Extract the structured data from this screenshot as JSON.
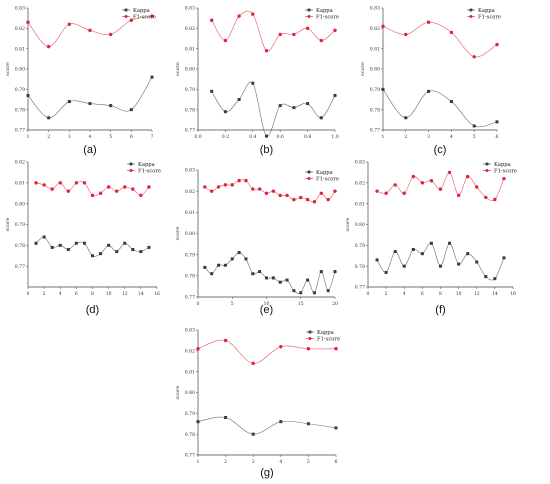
{
  "figure": {
    "colors": {
      "kappa": "#3a3a3a",
      "f1": "#e0223a",
      "axis": "#444444"
    },
    "legend_placement": "top-right",
    "grid": false
  },
  "chart_data": [
    {
      "type": "line",
      "panel": "a",
      "caption": "(a)",
      "ylabel": "score",
      "x": [
        1,
        2,
        3,
        4,
        5,
        6,
        7
      ],
      "xticks": [
        1,
        2,
        3,
        4,
        5,
        6,
        7
      ],
      "ylim": [
        0.77,
        0.83
      ],
      "yticks": [
        0.77,
        0.78,
        0.79,
        0.8,
        0.81,
        0.82,
        0.83
      ],
      "series": [
        {
          "name": "Kappa",
          "values": [
            0.787,
            0.776,
            0.784,
            0.783,
            0.782,
            0.78,
            0.796
          ]
        },
        {
          "name": "F1-score",
          "values": [
            0.823,
            0.811,
            0.822,
            0.819,
            0.817,
            0.824,
            0.826
          ]
        }
      ]
    },
    {
      "type": "line",
      "panel": "b",
      "caption": "(b)",
      "ylabel": "score",
      "x": [
        0.1,
        0.2,
        0.3,
        0.4,
        0.5,
        0.6,
        0.7,
        0.8,
        0.9,
        1.0
      ],
      "xticks": [
        0.0,
        0.2,
        0.4,
        0.6,
        0.8,
        1.0
      ],
      "ylim": [
        0.77,
        0.83
      ],
      "yticks": [
        0.77,
        0.78,
        0.79,
        0.8,
        0.81,
        0.82,
        0.83
      ],
      "series": [
        {
          "name": "Kappa",
          "values": [
            0.789,
            0.779,
            0.785,
            0.793,
            0.767,
            0.782,
            0.781,
            0.783,
            0.776,
            0.787
          ]
        },
        {
          "name": "F1-score",
          "values": [
            0.824,
            0.814,
            0.826,
            0.827,
            0.809,
            0.817,
            0.817,
            0.82,
            0.814,
            0.819
          ]
        }
      ]
    },
    {
      "type": "line",
      "panel": "c",
      "caption": "(c)",
      "ylabel": "score",
      "x": [
        1,
        2,
        3,
        4,
        5,
        6
      ],
      "xticks": [
        1,
        2,
        3,
        4,
        5,
        6
      ],
      "ylim": [
        0.77,
        0.83
      ],
      "yticks": [
        0.77,
        0.78,
        0.79,
        0.8,
        0.81,
        0.82,
        0.83
      ],
      "series": [
        {
          "name": "Kappa",
          "values": [
            0.79,
            0.776,
            0.789,
            0.784,
            0.772,
            0.774
          ]
        },
        {
          "name": "F1-score",
          "values": [
            0.821,
            0.817,
            0.823,
            0.818,
            0.806,
            0.812
          ]
        }
      ]
    },
    {
      "type": "line",
      "panel": "d",
      "caption": "(d)",
      "ylabel": "score",
      "x": [
        1,
        2,
        3,
        4,
        5,
        6,
        7,
        8,
        9,
        10,
        11,
        12,
        13,
        14,
        15
      ],
      "xticks": [
        0,
        2,
        4,
        6,
        8,
        10,
        12,
        14,
        16
      ],
      "ylim": [
        0.76,
        0.82
      ],
      "yticks": [
        0.77,
        0.78,
        0.79,
        0.8,
        0.81,
        0.82
      ],
      "series": [
        {
          "name": "Kappa",
          "values": [
            0.781,
            0.784,
            0.779,
            0.78,
            0.778,
            0.781,
            0.781,
            0.775,
            0.776,
            0.78,
            0.777,
            0.781,
            0.778,
            0.777,
            0.779
          ]
        },
        {
          "name": "F1-score",
          "values": [
            0.81,
            0.809,
            0.807,
            0.81,
            0.806,
            0.81,
            0.81,
            0.804,
            0.805,
            0.808,
            0.806,
            0.808,
            0.807,
            0.804,
            0.808
          ]
        }
      ]
    },
    {
      "type": "line",
      "panel": "e",
      "caption": "(e)",
      "ylabel": "score",
      "x": [
        1,
        2,
        3,
        4,
        5,
        6,
        7,
        8,
        9,
        10,
        11,
        12,
        13,
        14,
        15,
        16,
        17,
        18,
        19,
        20
      ],
      "xticks": [
        0,
        5,
        10,
        15,
        20
      ],
      "ylim": [
        0.77,
        0.83
      ],
      "yticks": [
        0.77,
        0.78,
        0.79,
        0.8,
        0.81,
        0.82,
        0.83
      ],
      "series": [
        {
          "name": "Kappa",
          "values": [
            0.784,
            0.781,
            0.785,
            0.785,
            0.788,
            0.791,
            0.788,
            0.781,
            0.782,
            0.779,
            0.779,
            0.777,
            0.778,
            0.773,
            0.772,
            0.778,
            0.772,
            0.782,
            0.773,
            0.782
          ]
        },
        {
          "name": "F1-score",
          "values": [
            0.822,
            0.82,
            0.822,
            0.823,
            0.823,
            0.825,
            0.825,
            0.821,
            0.821,
            0.819,
            0.82,
            0.818,
            0.818,
            0.816,
            0.817,
            0.816,
            0.815,
            0.819,
            0.816,
            0.82
          ]
        }
      ]
    },
    {
      "type": "line",
      "panel": "f",
      "caption": "(f)",
      "ylabel": "score",
      "x": [
        1,
        2,
        3,
        4,
        5,
        6,
        7,
        8,
        9,
        10,
        11,
        12,
        13,
        14,
        15
      ],
      "xticks": [
        0,
        2,
        4,
        6,
        8,
        10,
        12,
        14,
        16
      ],
      "ylim": [
        0.77,
        0.83
      ],
      "yticks": [
        0.77,
        0.78,
        0.79,
        0.8,
        0.81,
        0.82,
        0.83
      ],
      "series": [
        {
          "name": "Kappa",
          "values": [
            0.783,
            0.777,
            0.787,
            0.78,
            0.788,
            0.786,
            0.791,
            0.78,
            0.791,
            0.781,
            0.786,
            0.782,
            0.775,
            0.774,
            0.784
          ]
        },
        {
          "name": "F1-score",
          "values": [
            0.816,
            0.815,
            0.819,
            0.815,
            0.823,
            0.82,
            0.821,
            0.817,
            0.825,
            0.814,
            0.823,
            0.818,
            0.813,
            0.812,
            0.822
          ]
        }
      ]
    },
    {
      "type": "line",
      "panel": "g",
      "caption": "(g)",
      "ylabel": "score",
      "x": [
        1,
        2,
        3,
        4,
        5,
        6
      ],
      "xticks": [
        1,
        2,
        3,
        4,
        5,
        6
      ],
      "ylim": [
        0.77,
        0.83
      ],
      "yticks": [
        0.77,
        0.78,
        0.79,
        0.8,
        0.81,
        0.82,
        0.83
      ],
      "series": [
        {
          "name": "Kappa",
          "values": [
            0.786,
            0.788,
            0.78,
            0.786,
            0.785,
            0.783
          ]
        },
        {
          "name": "F1-score",
          "values": [
            0.821,
            0.825,
            0.814,
            0.822,
            0.821,
            0.821
          ]
        }
      ]
    }
  ]
}
